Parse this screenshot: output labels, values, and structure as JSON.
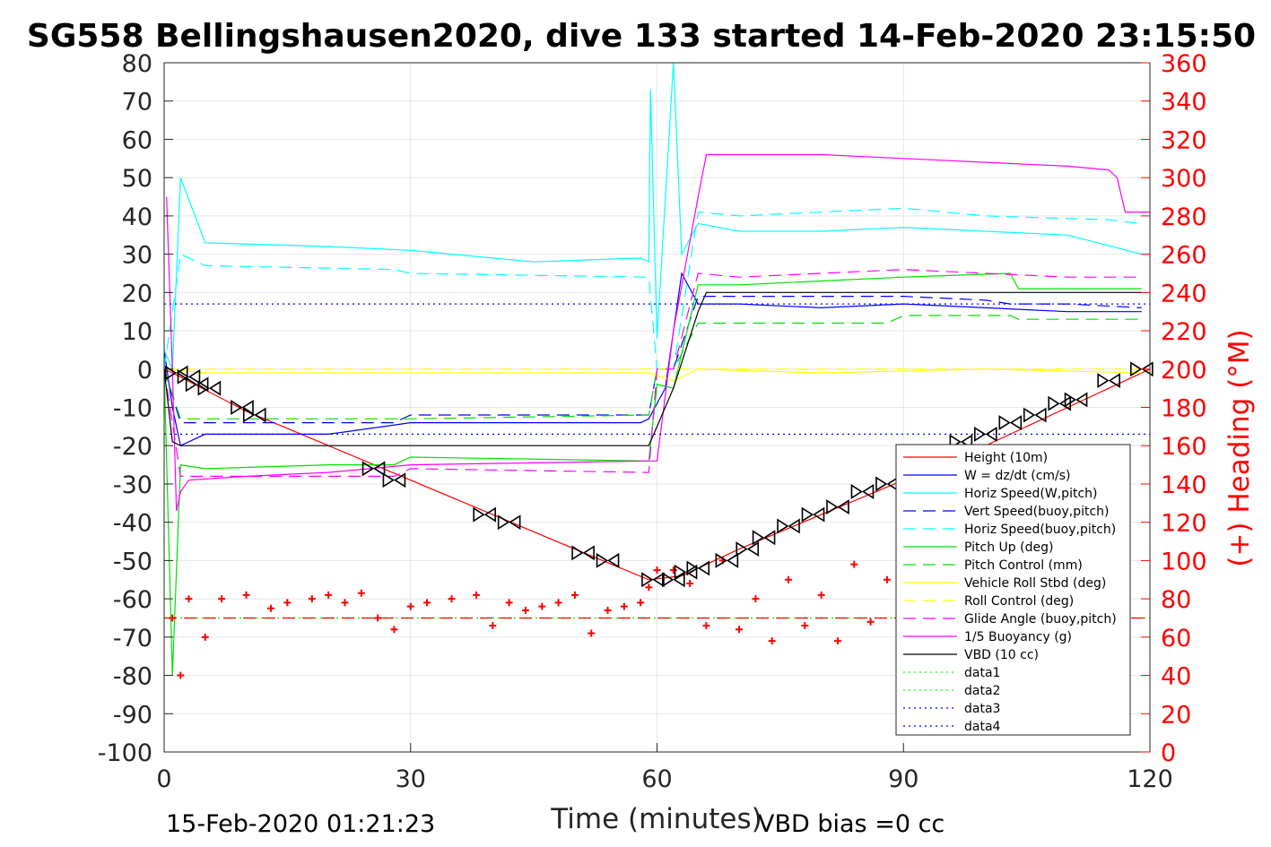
{
  "chart_data": {
    "type": "line",
    "title": "SG558 Bellingshausen2020, dive 133 started 14-Feb-2020 23:15:50",
    "xlabel": "Time (minutes)",
    "ylabel_right": "(+) Heading (°M)",
    "footer_left": "15-Feb-2020 01:21:23",
    "footer_right": "VBD bias =0 cc",
    "xlim": [
      0,
      120
    ],
    "ylim": [
      -100,
      80
    ],
    "y2lim": [
      0,
      360
    ],
    "xticks": [
      "0",
      "30",
      "60",
      "90",
      "120"
    ],
    "yticks": [
      "80",
      "70",
      "60",
      "50",
      "40",
      "30",
      "20",
      "10",
      "0",
      "-10",
      "-20",
      "-30",
      "-40",
      "-50",
      "-60",
      "-70",
      "-80",
      "-90",
      "-100"
    ],
    "y2ticks": [
      "360",
      "340",
      "320",
      "300",
      "280",
      "260",
      "240",
      "220",
      "200",
      "180",
      "160",
      "140",
      "120",
      "100",
      "80",
      "60",
      "40",
      "20",
      "0"
    ],
    "grid": true,
    "legend_position": "bottom-right",
    "legend": [
      {
        "name": "Height (10m)",
        "color": "#ff0000",
        "dash": "solid"
      },
      {
        "name": "W = dz/dt (cm/s)",
        "color": "#0000ff",
        "dash": "solid"
      },
      {
        "name": "Horiz Speed(W,pitch)",
        "color": "#00ffff",
        "dash": "solid"
      },
      {
        "name": "Vert Speed(buoy,pitch)",
        "color": "#0000ff",
        "dash": "dashed"
      },
      {
        "name": "Horiz Speed(buoy,pitch)",
        "color": "#00ffff",
        "dash": "dashed"
      },
      {
        "name": "Pitch Up (deg)",
        "color": "#00e000",
        "dash": "solid"
      },
      {
        "name": "Pitch Control (mm)",
        "color": "#00e000",
        "dash": "dashed"
      },
      {
        "name": "Vehicle Roll Stbd (deg)",
        "color": "#ffff00",
        "dash": "solid"
      },
      {
        "name": "Roll Control (deg)",
        "color": "#ffff00",
        "dash": "dashed"
      },
      {
        "name": "Glide Angle (buoy,pitch)",
        "color": "#ff00ff",
        "dash": "dashed"
      },
      {
        "name": "1/5 Buoyancy (g)",
        "color": "#ff00ff",
        "dash": "solid"
      },
      {
        "name": "VBD (10 cc)",
        "color": "#000000",
        "dash": "solid"
      },
      {
        "name": "data1",
        "color": "#00ff00",
        "dash": "dotted"
      },
      {
        "name": "data2",
        "color": "#00ff00",
        "dash": "dotted"
      },
      {
        "name": "data3",
        "color": "#0000ff",
        "dash": "dotted"
      },
      {
        "name": "data4",
        "color": "#0000ff",
        "dash": "dotted"
      }
    ],
    "series": [
      {
        "name": "Height (10m)",
        "axis": "left",
        "color": "#ff0000",
        "dash": "solid",
        "x": [
          0,
          1,
          10,
          20,
          30,
          40,
          50,
          59,
          63,
          70,
          80,
          90,
          100,
          110,
          120
        ],
        "y": [
          0,
          -1,
          -11,
          -20,
          -29,
          -38,
          -47,
          -55,
          -54,
          -47,
          -38,
          -29,
          -20,
          -10,
          0
        ]
      },
      {
        "name": "W = dz/dt (cm/s)",
        "axis": "left",
        "color": "#0000ff",
        "dash": "solid",
        "x": [
          0,
          1,
          2,
          5,
          20,
          30,
          45,
          58,
          59,
          61,
          63,
          65,
          70,
          80,
          90,
          100,
          110,
          119
        ],
        "y": [
          5,
          -10,
          -20,
          -17,
          -17,
          -14,
          -14,
          -14,
          -13,
          -5,
          25,
          17,
          17,
          16,
          17,
          16,
          15,
          15
        ]
      },
      {
        "name": "Horiz Speed(W,pitch)",
        "axis": "left",
        "color": "#00ffff",
        "dash": "solid",
        "x": [
          0,
          1,
          2,
          5,
          20,
          30,
          45,
          58,
          59,
          59.2,
          60,
          62,
          63,
          65,
          70,
          80,
          90,
          100,
          110,
          119
        ],
        "y": [
          5,
          0,
          50,
          33,
          32,
          31,
          28,
          29,
          28,
          73,
          8,
          80,
          30,
          38,
          36,
          36,
          37,
          36,
          35,
          30
        ]
      },
      {
        "name": "Vert Speed(buoy,pitch)",
        "axis": "left",
        "color": "#0000ff",
        "dash": "dashed",
        "x": [
          0,
          2,
          10,
          28,
          30,
          59,
          60,
          62,
          65,
          70,
          80,
          90,
          100,
          103,
          110,
          119
        ],
        "y": [
          0,
          -14,
          -14,
          -14,
          -12,
          -12,
          0,
          0,
          19,
          19,
          19,
          19,
          18,
          17,
          17,
          16
        ]
      },
      {
        "name": "Horiz Speed(buoy,pitch)",
        "axis": "left",
        "color": "#00ffff",
        "dash": "dashed",
        "x": [
          0,
          2,
          5,
          28,
          30,
          59,
          60,
          62,
          65,
          70,
          90,
          100,
          115,
          119
        ],
        "y": [
          0,
          30,
          27,
          26,
          25,
          24,
          0,
          0,
          41,
          40,
          42,
          40,
          39,
          38
        ]
      },
      {
        "name": "Pitch Up (deg)",
        "axis": "left",
        "color": "#00e000",
        "dash": "solid",
        "x": [
          0,
          1,
          2,
          5,
          20,
          28,
          30,
          59,
          60,
          62,
          65,
          70,
          80,
          90,
          103,
          104,
          119
        ],
        "y": [
          0,
          -80,
          -25,
          -26,
          -25,
          -25,
          -23,
          -24,
          -4,
          -5,
          22,
          22,
          23,
          24,
          25,
          21,
          21
        ]
      },
      {
        "name": "Pitch Control (mm)",
        "axis": "left",
        "color": "#00e000",
        "dash": "dashed",
        "x": [
          0,
          2,
          28,
          30,
          59,
          60,
          62,
          65,
          70,
          88,
          90,
          103,
          104,
          119
        ],
        "y": [
          0,
          -13,
          -13,
          -13,
          -12,
          0,
          0,
          12,
          12,
          12,
          14,
          14,
          13,
          13
        ]
      },
      {
        "name": "Vehicle Roll Stbd (deg)",
        "axis": "left",
        "color": "#ffff00",
        "dash": "solid",
        "x": [
          0,
          5,
          20,
          40,
          59,
          62,
          65,
          80,
          100,
          119
        ],
        "y": [
          0,
          -1,
          -1,
          -1,
          -1,
          -3,
          0,
          -1,
          0,
          -1
        ]
      },
      {
        "name": "Roll Control (deg)",
        "axis": "left",
        "color": "#ffff00",
        "dash": "dashed",
        "x": [
          0,
          119
        ],
        "y": [
          0,
          0
        ]
      },
      {
        "name": "Glide Angle (buoy,pitch)",
        "axis": "left",
        "color": "#ff00ff",
        "dash": "dashed",
        "x": [
          0,
          2,
          10,
          28,
          30,
          59,
          60,
          62,
          65,
          70,
          90,
          100,
          110,
          119
        ],
        "y": [
          0,
          -28,
          -28,
          -28,
          -26,
          -27,
          0,
          0,
          25,
          24,
          26,
          25,
          24,
          24
        ]
      },
      {
        "name": "1/5 Buoyancy (g)",
        "axis": "left",
        "color": "#ff00ff",
        "dash": "solid",
        "x": [
          0.3,
          1,
          1.5,
          2,
          3,
          10,
          20,
          30,
          59,
          60,
          62,
          65,
          66,
          70,
          80,
          90,
          100,
          110,
          115,
          116,
          117,
          118,
          120
        ],
        "y": [
          45,
          0,
          -37,
          -32,
          -29,
          -28,
          -27,
          -25,
          -24,
          -24,
          10,
          45,
          56,
          56,
          56,
          55,
          54,
          53,
          52,
          50,
          41,
          41,
          41
        ]
      },
      {
        "name": "VBD (10 cc)",
        "axis": "left",
        "color": "#000000",
        "dash": "solid",
        "x": [
          0,
          1,
          2,
          5,
          30,
          59,
          60,
          62,
          65,
          66,
          70,
          90,
          119
        ],
        "y": [
          0,
          -19,
          -20,
          -20,
          -20,
          -20,
          -15,
          -5,
          15,
          20,
          20,
          20,
          20
        ]
      },
      {
        "name": "data1",
        "axis": "left",
        "color": "#00ff00",
        "dash": "dotted",
        "x": [
          0,
          120
        ],
        "y": [
          -65,
          -65
        ]
      },
      {
        "name": "data2",
        "axis": "left",
        "color": "#00ff00",
        "dash": "dotted",
        "x": [
          0,
          120
        ],
        "y": [
          -65,
          -65
        ]
      },
      {
        "name": "data3",
        "axis": "left",
        "color": "#0000ff",
        "dash": "dotted",
        "x": [
          0,
          120
        ],
        "y": [
          17,
          17
        ]
      },
      {
        "name": "data4",
        "axis": "left",
        "color": "#0000ff",
        "dash": "dotted",
        "x": [
          0,
          120
        ],
        "y": [
          -17,
          -17
        ]
      },
      {
        "name": "Heading",
        "axis": "right",
        "color": "#ff0000",
        "dash": "none",
        "marker": "+",
        "x": [
          1,
          2,
          3,
          5,
          7,
          10,
          13,
          15,
          18,
          20,
          22,
          24,
          26,
          28,
          30,
          32,
          35,
          38,
          40,
          42,
          44,
          46,
          48,
          50,
          52,
          54,
          56,
          58,
          59,
          60,
          62,
          64,
          66,
          68,
          70,
          72,
          74,
          76,
          78,
          80,
          82,
          84,
          86,
          88,
          90,
          92
        ],
        "y": [
          70,
          40,
          80,
          60,
          80,
          82,
          75,
          78,
          80,
          82,
          78,
          83,
          70,
          64,
          76,
          78,
          80,
          82,
          66,
          78,
          74,
          76,
          78,
          82,
          62,
          74,
          76,
          78,
          86,
          95,
          95,
          88,
          66,
          100,
          64,
          80,
          58,
          90,
          66,
          82,
          58,
          98,
          68,
          90,
          60,
          82
        ]
      },
      {
        "name": "Heading Target",
        "axis": "right",
        "color": "#ff0000",
        "dash": "dashed",
        "x": [
          0,
          120
        ],
        "y": [
          70,
          70
        ]
      },
      {
        "name": "Waypoints",
        "axis": "left",
        "color": "#000000",
        "dash": "none",
        "marker": "bowtie",
        "x": [
          1.5,
          3,
          4,
          5.5,
          9.5,
          11,
          25.5,
          28,
          39,
          42,
          51,
          54,
          59.5,
          62,
          63.5,
          65,
          68.5,
          71,
          73,
          76,
          79,
          82,
          85,
          88,
          91,
          94,
          97,
          100,
          103,
          106,
          109,
          111,
          115,
          119
        ],
        "y": [
          -1,
          -2,
          -4,
          -5,
          -10,
          -12,
          -26,
          -29,
          -38,
          -40,
          -48,
          -50,
          -55,
          -55,
          -53,
          -52,
          -50,
          -47,
          -44,
          -41,
          -38,
          -36,
          -32,
          -30,
          -25,
          -22,
          -19,
          -17,
          -14,
          -12,
          -9,
          -8,
          -3,
          0
        ]
      }
    ]
  }
}
